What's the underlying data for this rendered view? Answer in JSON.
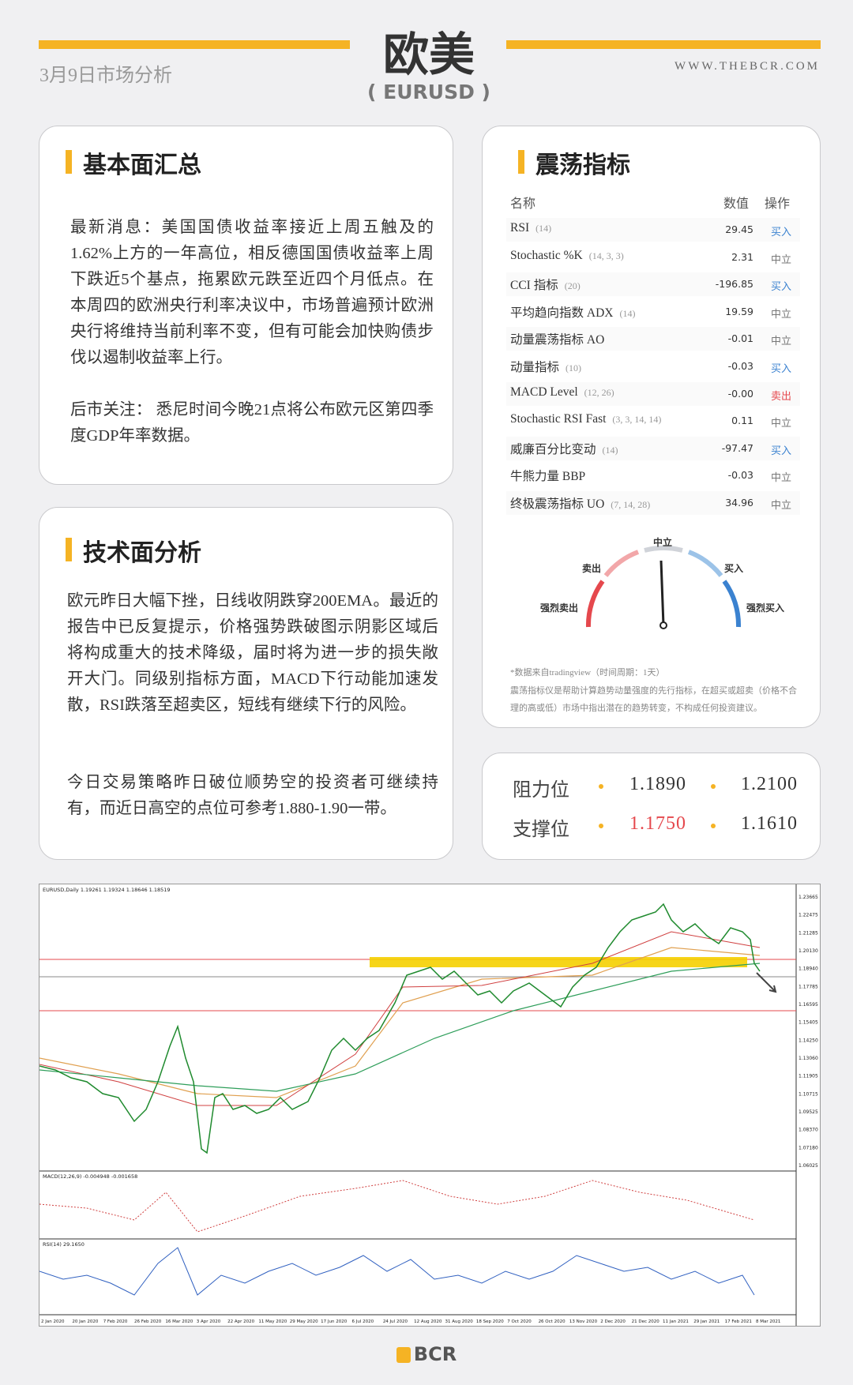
{
  "header": {
    "title": "欧美",
    "subtitle": "( EURUSD )",
    "date": "3月9日市场分析",
    "website": "WWW.THEBCR.COM"
  },
  "fundamentals": {
    "title": "基本面汇总",
    "paragraphs": [
      "最新消息：美国国债收益率接近上周五触及的1.62%上方的一年高位，相反德国国债收益率上周下跌近5个基点，拖累欧元跌至近四个月低点。在本周四的欧洲央行利率决议中，市场普遍预计欧洲央行将维持当前利率不变，但有可能会加快购债步伐以遏制收益率上行。",
      "后市关注： 悉尼时间今晚21点将公布欧元区第四季度GDP年率数据。"
    ]
  },
  "technical": {
    "title": "技术面分析",
    "paragraphs": [
      "欧元昨日大幅下挫，日线收阴跌穿200EMA。最近的报告中已反复提示，价格强势跌破图示阴影区域后将构成重大的技术降级，届时将为进一步的损失敞开大门。同级别指标方面，MACD下行动能加速发散，RSI跌落至超卖区，短线有继续下行的风险。",
      "今日交易策略昨日破位顺势空的投资者可继续持有，而近日高空的点位可参考1.880-1.90一带。"
    ]
  },
  "oscillators": {
    "title": "震荡指标",
    "columns": [
      "名称",
      "数值",
      "操作"
    ],
    "rows": [
      {
        "name": "RSI",
        "params": "(14)",
        "value": "29.45",
        "action": "买入",
        "color": "#3b82d0"
      },
      {
        "name": "Stochastic %K",
        "params": "(14, 3, 3)",
        "value": "2.31",
        "action": "中立",
        "color": "#777777"
      },
      {
        "name": "CCI 指标",
        "params": "(20)",
        "value": "-196.85",
        "action": "买入",
        "color": "#3b82d0"
      },
      {
        "name": "平均趋向指数 ADX",
        "params": "(14)",
        "value": "19.59",
        "action": "中立",
        "color": "#777777"
      },
      {
        "name": "动量震荡指标 AO",
        "value": "-0.01",
        "action": "中立",
        "color": "#777777"
      },
      {
        "name": "动量指标",
        "params": "(10)",
        "value": "-0.03",
        "action": "买入",
        "color": "#3b82d0"
      },
      {
        "name": "MACD Level",
        "params": "(12, 26)",
        "value": "-0.00",
        "action": "卖出",
        "color": "#e5484d"
      },
      {
        "name": "Stochastic RSI Fast",
        "params": "(3, 3, 14, 14)",
        "value": "0.11",
        "action": "中立",
        "color": "#777777"
      },
      {
        "name": "威廉百分比变动",
        "params": "(14)",
        "value": "-97.47",
        "action": "买入",
        "color": "#3b82d0"
      },
      {
        "name": "牛熊力量 BBP",
        "value": "-0.03",
        "action": "中立",
        "color": "#777777"
      },
      {
        "name": "终极震荡指标 UO",
        "params": "(7, 14, 28)",
        "value": "34.96",
        "action": "中立",
        "color": "#777777"
      }
    ],
    "gauge": {
      "neutral": "中立",
      "sell": "卖出",
      "buy": "买入",
      "strong_sell": "强烈卖出",
      "strong_buy": "强烈买入"
    },
    "notes": [
      "*数据来自tradingview（时间周期：1天）",
      "震荡指标仪是帮助计算趋势动量强度的先行指标，在超买或超卖（价格不合理的高或低）市场中指出潜在的趋势转变，不构成任何投资建议。"
    ]
  },
  "levels": {
    "rows": [
      {
        "label": "阻力位",
        "values": [
          {
            "text": "1.1890",
            "color": "#333333"
          },
          {
            "text": "1.2100",
            "color": "#333333"
          }
        ]
      },
      {
        "label": "支撑位",
        "values": [
          {
            "text": "1.1750",
            "color": "#e5484d"
          },
          {
            "text": "1.1610",
            "color": "#333333"
          }
        ]
      }
    ]
  },
  "chart": {
    "header": "EURUSD,Daily 1.19261 1.19324 1.18646 1.18519",
    "macd_label": "MACD(12,26,9) -0.004948 -0.001658",
    "rsi_label": "RSI(14) 29.1650",
    "price_labels": [
      "1.23665",
      "1.22475",
      "1.21285",
      "1.20130",
      "1.18940",
      "1.17785",
      "1.16595",
      "1.15405",
      "1.14250",
      "1.13060",
      "1.11905",
      "1.10715",
      "1.09525",
      "1.08370",
      "1.07180",
      "1.06025"
    ],
    "dates": [
      "2 Jan 2020",
      "20 Jan 2020",
      "7 Feb 2020",
      "26 Feb 2020",
      "16 Mar 2020",
      "3 Apr 2020",
      "22 Apr 2020",
      "11 May 2020",
      "29 May 2020",
      "17 Jun 2020",
      "6 Jul 2020",
      "24 Jul 2020",
      "12 Aug 2020",
      "31 Aug 2020",
      "18 Sep 2020",
      "7 Oct 2020",
      "26 Oct 2020",
      "13 Nov 2020",
      "2 Dec 2020",
      "21 Dec 2020",
      "11 Jan 2021",
      "29 Jan 2021",
      "17 Feb 2021",
      "8 Mar 2021"
    ]
  },
  "footer": {
    "logo": "BCR"
  }
}
